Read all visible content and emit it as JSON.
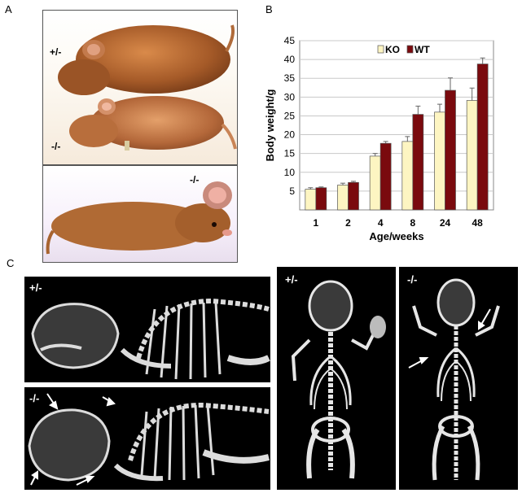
{
  "figure": {
    "panel_labels": {
      "a": "A",
      "b": "B",
      "c": "C"
    },
    "photo_labels": {
      "top_left": "+/-",
      "bottom_left": "-/-",
      "bottom_photo": "-/-"
    },
    "xray_labels": {
      "lateral_top": "+/-",
      "lateral_bottom": "-/-",
      "dorsal_left": "+/-",
      "dorsal_right": "-/-"
    }
  },
  "chart_data": {
    "type": "bar",
    "ylabel": "Body weight/g",
    "xlabel": "Age/weeks",
    "categories": [
      "1",
      "2",
      "4",
      "8",
      "24",
      "48"
    ],
    "ylim": [
      0,
      45
    ],
    "yticks": [
      5,
      10,
      15,
      20,
      25,
      30,
      35,
      40,
      45
    ],
    "grid": true,
    "legend_position": "top",
    "series": [
      {
        "name": "KO",
        "color": "#fdf5c2",
        "values": [
          5.5,
          6.6,
          14.3,
          18.2,
          26.0,
          29.1
        ],
        "errors": [
          0.4,
          0.5,
          0.7,
          1.3,
          2.1,
          3.3
        ]
      },
      {
        "name": "WT",
        "color": "#7a0a0e",
        "values": [
          5.9,
          7.3,
          17.7,
          25.4,
          31.8,
          38.8
        ],
        "errors": [
          0.2,
          0.3,
          0.5,
          2.2,
          3.3,
          1.6
        ]
      }
    ]
  }
}
